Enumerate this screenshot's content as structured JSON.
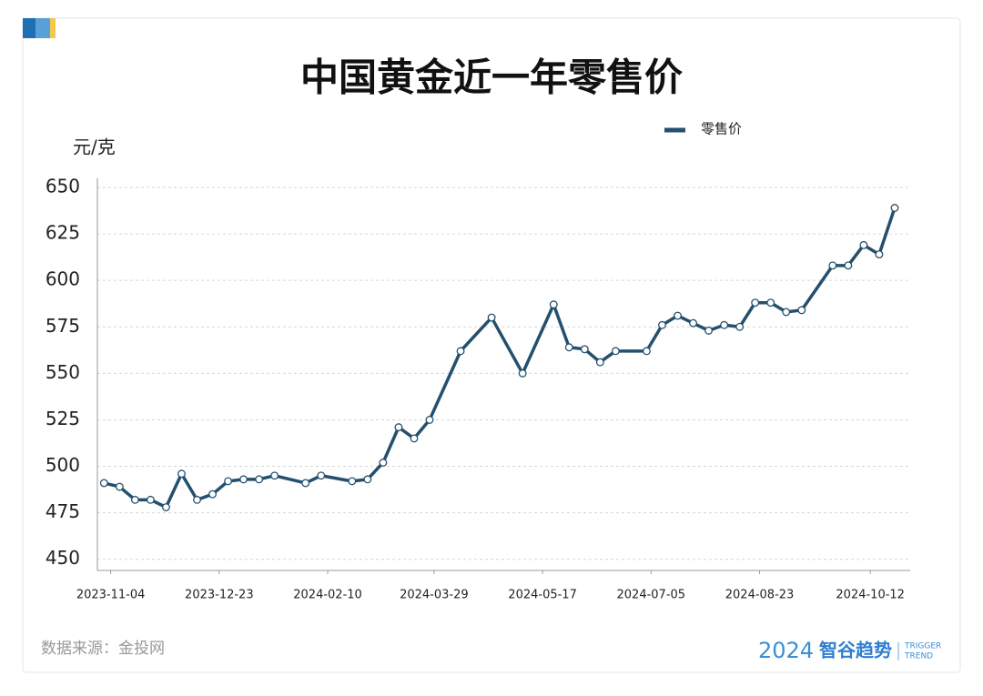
{
  "chart_data": {
    "type": "line",
    "title": "中国黄金近一年零售价",
    "y_label": "元/克",
    "x": [
      "2023-11-01",
      "2023-11-08",
      "2023-11-15",
      "2023-11-22",
      "2023-11-29",
      "2023-12-06",
      "2023-12-13",
      "2023-12-20",
      "2023-12-27",
      "2024-01-03",
      "2024-01-10",
      "2024-01-17",
      "2024-01-31",
      "2024-02-07",
      "2024-02-21",
      "2024-02-28",
      "2024-03-06",
      "2024-03-13",
      "2024-03-20",
      "2024-03-27",
      "2024-04-10",
      "2024-04-24",
      "2024-05-08",
      "2024-05-22",
      "2024-05-29",
      "2024-06-05",
      "2024-06-12",
      "2024-06-19",
      "2024-07-03",
      "2024-07-10",
      "2024-07-17",
      "2024-07-24",
      "2024-07-31",
      "2024-08-07",
      "2024-08-14",
      "2024-08-21",
      "2024-08-28",
      "2024-09-04",
      "2024-09-11",
      "2024-09-25",
      "2024-10-02",
      "2024-10-09",
      "2024-10-16",
      "2024-10-23"
    ],
    "series": [
      {
        "name": "零售价",
        "color": "#24506e",
        "values": [
          491,
          489,
          482,
          482,
          478,
          496,
          482,
          485,
          492,
          493,
          493,
          495,
          491,
          495,
          492,
          493,
          502,
          521,
          515,
          525,
          562,
          580,
          550,
          587,
          564,
          563,
          556,
          562,
          562,
          576,
          581,
          577,
          573,
          576,
          575,
          588,
          588,
          583,
          584,
          608,
          608,
          619,
          614,
          639
        ]
      }
    ],
    "xlim": [
      "2023-10-29",
      "2024-10-30"
    ],
    "xticks": [
      "2023-11-04",
      "2023-12-23",
      "2024-02-10",
      "2024-03-29",
      "2024-05-17",
      "2024-07-05",
      "2024-08-23",
      "2024-10-12"
    ],
    "ylim": [
      444,
      650
    ],
    "yticks": [
      450,
      475,
      500,
      525,
      550,
      575,
      600,
      625,
      650
    ],
    "grid": true,
    "source": "数据来源：金投网",
    "logo": {
      "year": "2024",
      "name": "智谷趋势",
      "en1": "TRIGGER",
      "en2": "TREND"
    }
  }
}
